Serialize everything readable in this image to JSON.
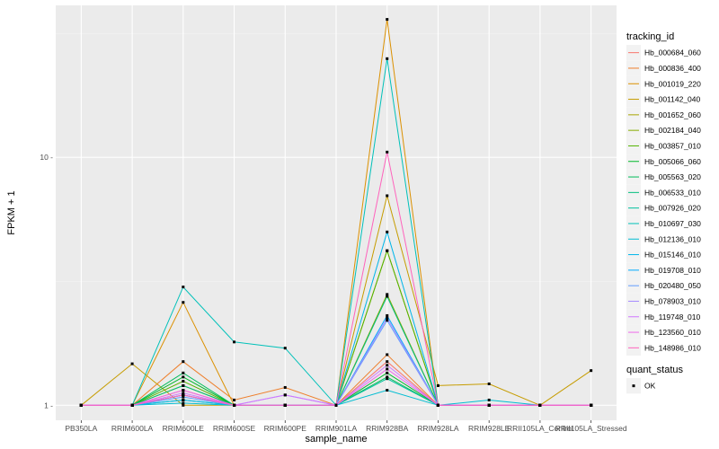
{
  "chart_data": {
    "type": "line",
    "xlabel": "sample_name",
    "ylabel": "FPKM + 1",
    "y_scale": "log10",
    "ylim": [
      0.87,
      41
    ],
    "y_ticks": [
      1,
      10
    ],
    "y_tick_labels": [
      "1 -",
      "10 -"
    ],
    "grid": true,
    "legend_position": "right",
    "categories": [
      "PB350LA",
      "RRIM600LA",
      "RRIM600LE",
      "RRIM600SE",
      "RRIM600PE",
      "RRIM901LA",
      "RRIM928BA",
      "RRIM928LA",
      "RRIM928LE",
      "RRII105LA_Control",
      "RRII105LA_Stressed"
    ],
    "series": [
      {
        "name": "Hb_000684_060",
        "color": "#F8766D",
        "values": [
          1,
          1,
          1.15,
          1.0,
          1.0,
          1,
          1.5,
          1,
          1,
          1,
          1
        ]
      },
      {
        "name": "Hb_000836_400",
        "color": "#EE7F2B",
        "values": [
          1,
          1,
          1.5,
          1.05,
          1.18,
          1,
          1.6,
          1,
          1,
          1,
          1
        ]
      },
      {
        "name": "Hb_001019_220",
        "color": "#DB9000",
        "values": [
          1,
          1,
          2.6,
          1.0,
          1.0,
          1,
          36,
          1,
          1,
          1,
          1
        ]
      },
      {
        "name": "Hb_001142_040",
        "color": "#C69C00",
        "values": [
          1,
          1.47,
          1.0,
          1.0,
          1.0,
          1,
          7.0,
          1.2,
          1.22,
          1,
          1.38
        ]
      },
      {
        "name": "Hb_001652_060",
        "color": "#A9A400",
        "values": [
          1,
          1,
          1.1,
          1.0,
          1.0,
          1,
          4.2,
          1,
          1,
          1,
          1
        ]
      },
      {
        "name": "Hb_002184_040",
        "color": "#86AC00",
        "values": [
          1,
          1,
          1.2,
          1.0,
          1.0,
          1,
          2.8,
          1,
          1,
          1,
          1
        ]
      },
      {
        "name": "Hb_003857_010",
        "color": "#53B400",
        "values": [
          1,
          1,
          1.25,
          1.0,
          1.0,
          1,
          4.2,
          1,
          1,
          1,
          1
        ]
      },
      {
        "name": "Hb_005066_060",
        "color": "#00B82B",
        "values": [
          1,
          1,
          1.3,
          1.0,
          1.0,
          1,
          1.35,
          1,
          1,
          1,
          1
        ]
      },
      {
        "name": "Hb_005563_020",
        "color": "#00BC59",
        "values": [
          1,
          1,
          1.35,
          1.0,
          1.0,
          1,
          1.3,
          1,
          1,
          1,
          1
        ]
      },
      {
        "name": "Hb_006533_010",
        "color": "#00BF7D",
        "values": [
          1,
          1,
          1.2,
          1.0,
          1.0,
          1,
          2.75,
          1,
          1,
          1,
          1
        ]
      },
      {
        "name": "Hb_007926_020",
        "color": "#00C19D",
        "values": [
          1,
          1,
          1.05,
          1.0,
          1.0,
          1,
          1.28,
          1,
          1,
          1,
          1
        ]
      },
      {
        "name": "Hb_010697_030",
        "color": "#00C1B9",
        "values": [
          1,
          1,
          3.0,
          1.8,
          1.7,
          1,
          25,
          1,
          1,
          1,
          1
        ]
      },
      {
        "name": "Hb_012136_010",
        "color": "#00BDD2",
        "values": [
          1,
          1,
          1.02,
          1.0,
          1.0,
          1,
          1.15,
          1,
          1.05,
          1,
          1
        ]
      },
      {
        "name": "Hb_015146_010",
        "color": "#00B6E9",
        "values": [
          1,
          1,
          1.05,
          1.0,
          1.0,
          1,
          5.0,
          1,
          1,
          1,
          1
        ]
      },
      {
        "name": "Hb_019708_010",
        "color": "#00ABFD",
        "values": [
          1,
          1,
          1.1,
          1.0,
          1.0,
          1,
          2.3,
          1,
          1,
          1,
          1
        ]
      },
      {
        "name": "Hb_020480_050",
        "color": "#619CFF",
        "values": [
          1,
          1,
          1.08,
          1.0,
          1.0,
          1,
          2.2,
          1,
          1,
          1,
          1
        ]
      },
      {
        "name": "Hb_078903_010",
        "color": "#A58AFF",
        "values": [
          1,
          1,
          1.1,
          1.0,
          1.1,
          1,
          2.25,
          1,
          1,
          1,
          1
        ]
      },
      {
        "name": "Hb_119748_010",
        "color": "#D177FF",
        "values": [
          1,
          1,
          1.12,
          1.0,
          1.1,
          1,
          1.45,
          1,
          1,
          1,
          1
        ]
      },
      {
        "name": "Hb_123560_010",
        "color": "#EF67EB",
        "values": [
          1,
          1,
          1.15,
          1.0,
          1.0,
          1,
          1.4,
          1,
          1,
          1,
          1
        ]
      },
      {
        "name": "Hb_148986_010",
        "color": "#FF62BC",
        "values": [
          1,
          1,
          1.1,
          1.0,
          1.0,
          1,
          10.5,
          1,
          1,
          1,
          1
        ]
      }
    ],
    "legend": {
      "color_title": "tracking_id",
      "shape_title": "quant_status",
      "shape_entries": [
        "OK"
      ]
    }
  }
}
